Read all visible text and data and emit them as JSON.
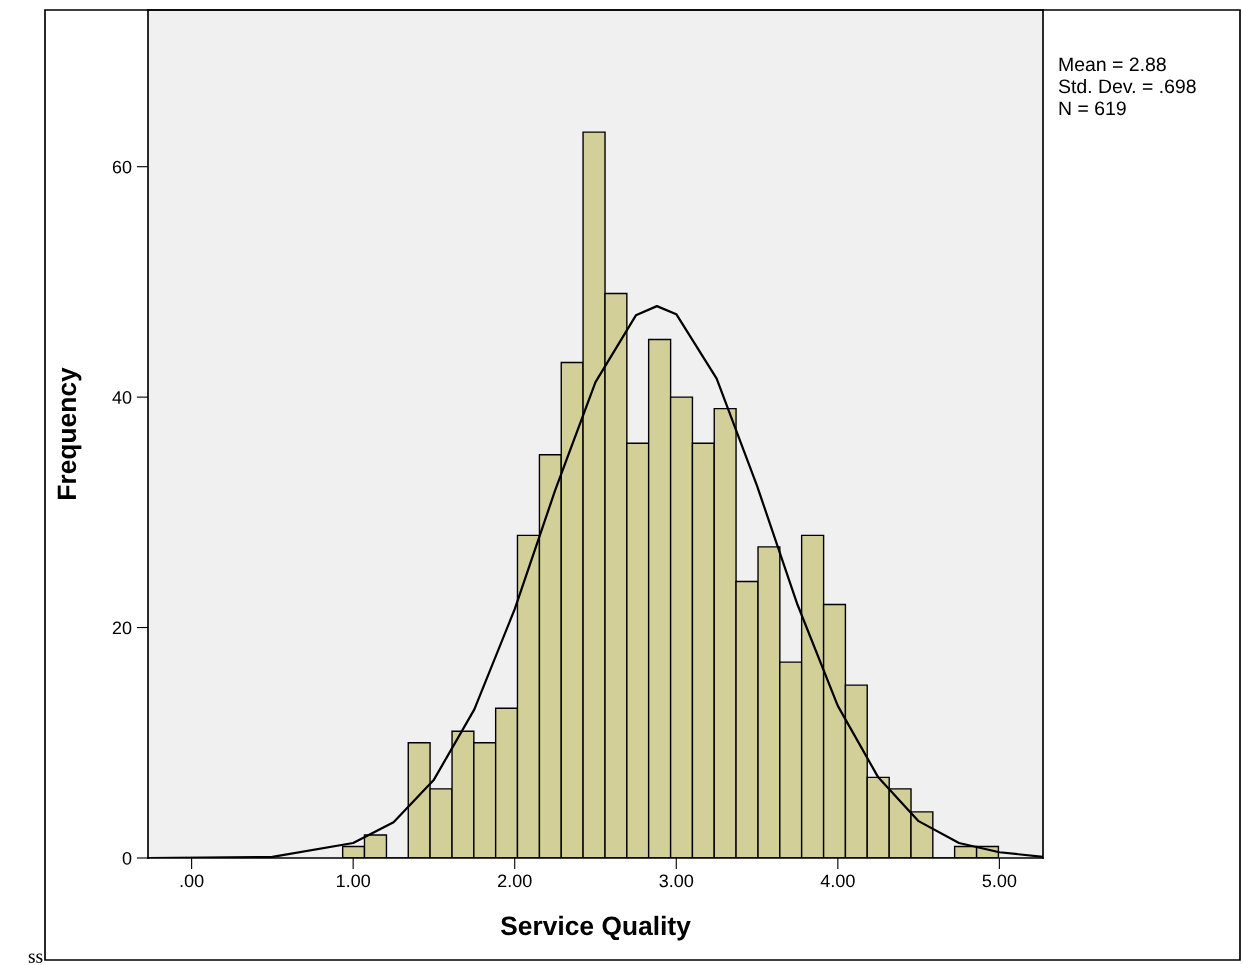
{
  "chart_data": {
    "type": "histogram",
    "xlabel": "Service Quality",
    "ylabel": "Frequency",
    "bins": [
      0.935,
      1.07,
      1.206,
      1.341,
      1.476,
      1.612,
      1.747,
      1.882,
      2.017,
      2.153,
      2.288,
      2.423,
      2.559,
      2.694,
      2.829,
      2.965,
      3.1,
      3.235,
      3.37,
      3.506,
      3.641,
      3.776,
      3.912,
      4.047,
      4.182,
      4.318,
      4.453,
      4.588,
      4.723,
      4.859,
      4.994
    ],
    "values": [
      1,
      2,
      0,
      10,
      6,
      11,
      10,
      13,
      28,
      35,
      43,
      63,
      49,
      36,
      45,
      40,
      36,
      39,
      24,
      27,
      17,
      28,
      22,
      15,
      7,
      6,
      4,
      0,
      1,
      1
    ],
    "color": "#d3cf99",
    "series": [
      {
        "type": "line",
        "color": "#000000",
        "x": [
          -0.27,
          0.5,
          1.0,
          1.25,
          1.5,
          1.75,
          2.0,
          2.25,
          2.5,
          2.75,
          2.88,
          3.0,
          3.25,
          3.5,
          3.75,
          4.0,
          4.25,
          4.5,
          4.75,
          5.0,
          5.27
        ],
        "values": [
          0.0,
          0.1,
          1.3,
          3.1,
          6.8,
          12.9,
          21.6,
          31.9,
          41.3,
          47.1,
          47.9,
          47.2,
          41.6,
          32.3,
          22.0,
          13.2,
          7.0,
          3.2,
          1.3,
          0.5,
          0.1
        ]
      }
    ],
    "xlim": [
      -0.27,
      5.27
    ],
    "ylim": [
      0,
      73.6
    ],
    "xticks": [
      {
        "value": 0,
        "label": ".00"
      },
      {
        "value": 1,
        "label": "1.00"
      },
      {
        "value": 2,
        "label": "2.00"
      },
      {
        "value": 3,
        "label": "3.00"
      },
      {
        "value": 4,
        "label": "4.00"
      },
      {
        "value": 5,
        "label": "5.00"
      }
    ],
    "yticks": [
      0,
      20,
      40,
      60
    ],
    "grid": false,
    "legend": false,
    "annotations": [
      "Mean = 2.88",
      "Std. Dev. = .698",
      "N = 619",
      "ss"
    ]
  }
}
